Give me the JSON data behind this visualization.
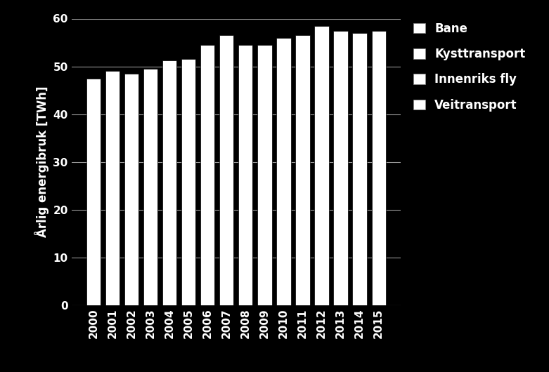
{
  "years": [
    2000,
    2001,
    2002,
    2003,
    2004,
    2005,
    2006,
    2007,
    2008,
    2009,
    2010,
    2011,
    2012,
    2013,
    2014,
    2015
  ],
  "values": [
    47.5,
    49.0,
    48.5,
    49.5,
    51.2,
    51.5,
    54.5,
    56.5,
    54.5,
    54.5,
    56.0,
    56.5,
    58.5,
    57.5,
    57.0,
    57.5
  ],
  "bar_color": "#ffffff",
  "background_color": "#000000",
  "text_color": "#ffffff",
  "ylabel": "Årlig energibruk [TWh]",
  "ylim": [
    0,
    60
  ],
  "yticks": [
    0,
    10,
    20,
    30,
    40,
    50,
    60
  ],
  "legend_labels": [
    "Bane",
    "Kysttransport",
    "Innenriks fly",
    "Veitransport"
  ],
  "legend_colors": [
    "#ffffff",
    "#ffffff",
    "#ffffff",
    "#ffffff"
  ],
  "grid_color": "#ffffff",
  "bar_edge_color": "#000000"
}
